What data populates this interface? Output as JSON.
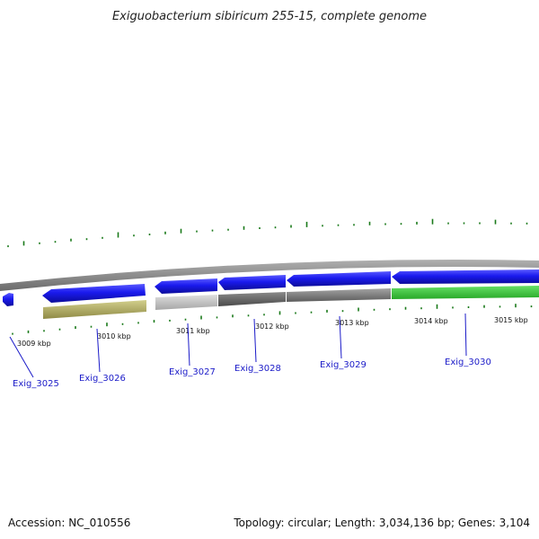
{
  "title": "Exiguobacterium sibiricum 255-15, complete genome",
  "footer": {
    "accession": "Accession: NC_010556",
    "topology": "Topology: circular; Length: 3,034,136 bp; Genes: 3,104"
  },
  "colors": {
    "forward_strand": "#1a1aee",
    "backbone": "#8a8a8a",
    "gc_skew_tick": "#1a7a1a",
    "gene_label": "#1a1ac8",
    "tan_track": "#bdb86e",
    "light_gray_track": "#c9c9c9",
    "dark_gray_track": "#6e6e6e",
    "mid_gray_track": "#8c8c8c",
    "green_track": "#3ccc3c"
  },
  "tick_labels": [
    "3009 kbp",
    "3010 kbp",
    "3011 kbp",
    "3012 kbp",
    "3013 kbp",
    "3014 kbp",
    "3015 kbp"
  ],
  "genes": [
    {
      "name": "Exig_3025",
      "track": "blue-fragment"
    },
    {
      "name": "Exig_3026",
      "track": "tan"
    },
    {
      "name": "Exig_3027",
      "track": "light-gray"
    },
    {
      "name": "Exig_3028",
      "track": "dark-gray"
    },
    {
      "name": "Exig_3029",
      "track": "mid-gray"
    },
    {
      "name": "Exig_3030",
      "track": "green"
    }
  ]
}
